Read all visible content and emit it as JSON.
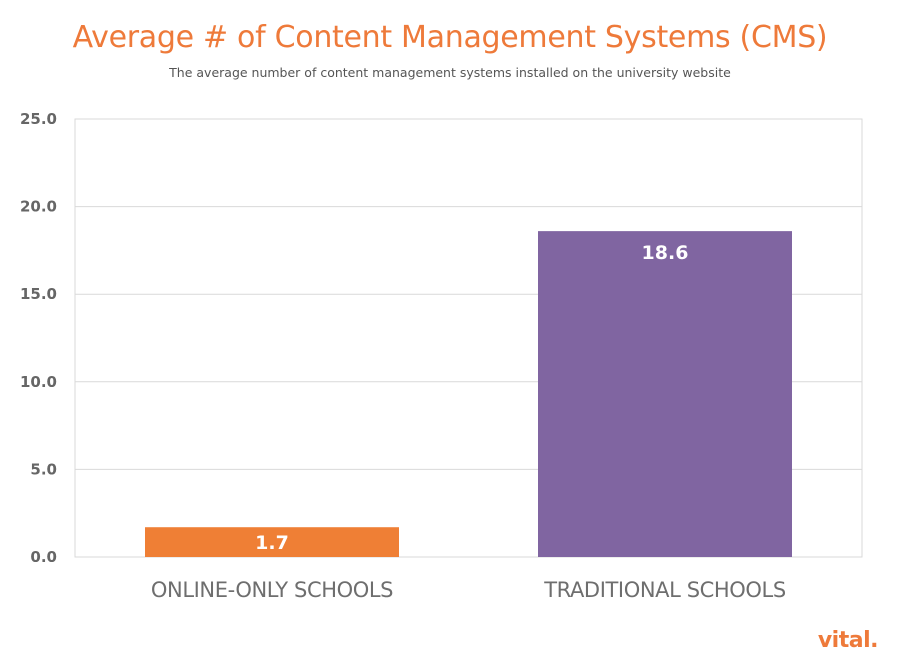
{
  "chart_data": {
    "type": "bar",
    "title": "Average # of Content Management Systems (CMS)",
    "subtitle": "The average number of content management systems installed on the university website",
    "categories": [
      "ONLINE-ONLY SCHOOLS",
      "TRADITIONAL SCHOOLS"
    ],
    "values": [
      1.7,
      18.6
    ],
    "value_labels": [
      "1.7",
      "18.6"
    ],
    "bar_colors": [
      "#ef7f35",
      "#8065a1"
    ],
    "ylim": [
      0,
      25
    ],
    "yticks": [
      0,
      5,
      10,
      15,
      20,
      25
    ],
    "ytick_labels": [
      "0.0",
      "5.0",
      "10.0",
      "15.0",
      "20.0",
      "25.0"
    ],
    "xlabel": "",
    "ylabel": "",
    "grid": true,
    "legend": "none"
  },
  "brand": {
    "logo_text": "vital.",
    "accent_color": "#ee7a3a"
  }
}
